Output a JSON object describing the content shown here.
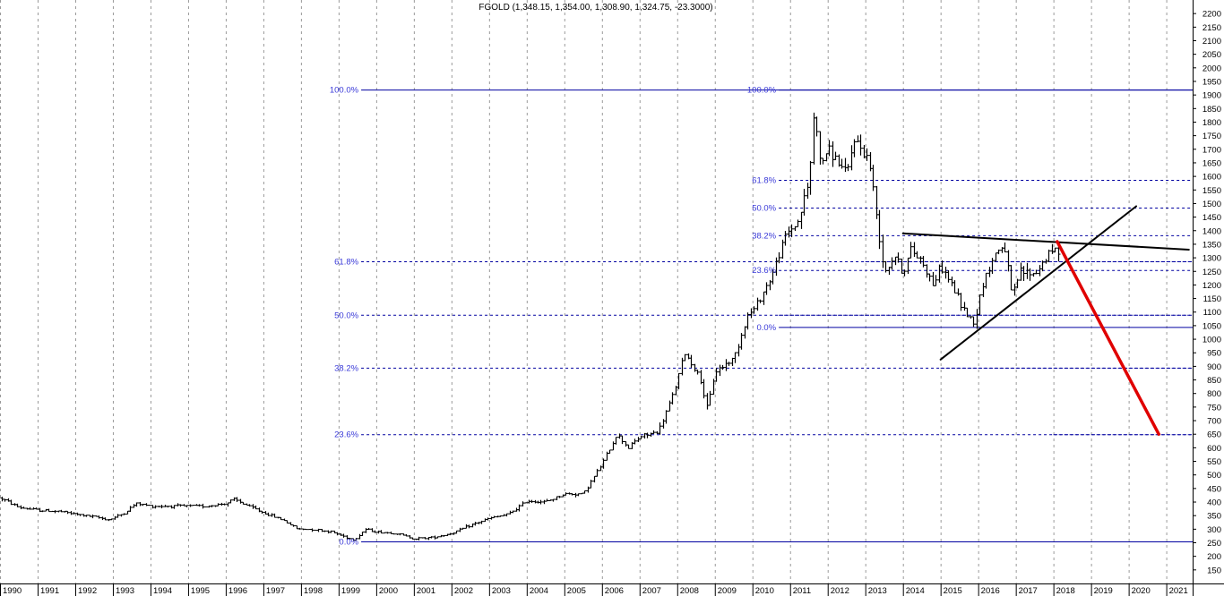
{
  "chart_data": {
    "type": "ohlc",
    "title": "FGOLD (1,348.15, 1,354.00, 1,308.90, 1,324.75, -23.3000)",
    "ohlc_last": {
      "open": 1348.15,
      "high": 1354.0,
      "low": 1308.9,
      "close": 1324.75,
      "change": -23.3
    },
    "ylim": [
      100,
      2250
    ],
    "y_ticks": [
      150,
      200,
      250,
      300,
      350,
      400,
      450,
      500,
      550,
      600,
      650,
      700,
      750,
      800,
      850,
      900,
      950,
      1000,
      1050,
      1100,
      1150,
      1200,
      1250,
      1300,
      1350,
      1400,
      1450,
      1500,
      1550,
      1600,
      1650,
      1700,
      1750,
      1800,
      1850,
      1900,
      1950,
      2000,
      2050,
      2100,
      2150,
      2200
    ],
    "xlim": [
      1990.0,
      2021.7
    ],
    "x_ticks": [
      "1990",
      "1991",
      "1992",
      "1993",
      "1994",
      "1995",
      "1996",
      "1997",
      "1998",
      "1999",
      "2000",
      "2001",
      "2002",
      "2003",
      "2004",
      "2005",
      "2006",
      "2007",
      "2008",
      "2009",
      "2010",
      "2011",
      "2012",
      "2013",
      "2014",
      "2015",
      "2016",
      "2017",
      "2018",
      "2019",
      "2020",
      "2021"
    ],
    "grid": {
      "vertical": true,
      "horizontal": false
    },
    "price_anchors": [
      [
        1990.0,
        415
      ],
      [
        1990.5,
        380
      ],
      [
        1991.0,
        370
      ],
      [
        1991.6,
        365
      ],
      [
        1992.0,
        355
      ],
      [
        1992.5,
        345
      ],
      [
        1992.9,
        335
      ],
      [
        1993.3,
        360
      ],
      [
        1993.6,
        395
      ],
      [
        1994.0,
        385
      ],
      [
        1994.5,
        385
      ],
      [
        1995.0,
        385
      ],
      [
        1995.5,
        385
      ],
      [
        1996.0,
        395
      ],
      [
        1996.2,
        410
      ],
      [
        1996.6,
        385
      ],
      [
        1997.0,
        360
      ],
      [
        1997.5,
        335
      ],
      [
        1997.9,
        300
      ],
      [
        1998.3,
        300
      ],
      [
        1998.8,
        290
      ],
      [
        1999.4,
        260
      ],
      [
        1999.7,
        300
      ],
      [
        2000.0,
        290
      ],
      [
        2000.5,
        285
      ],
      [
        2001.0,
        265
      ],
      [
        2001.5,
        270
      ],
      [
        2002.0,
        285
      ],
      [
        2002.5,
        315
      ],
      [
        2003.0,
        340
      ],
      [
        2003.5,
        355
      ],
      [
        2004.0,
        405
      ],
      [
        2004.5,
        400
      ],
      [
        2005.0,
        430
      ],
      [
        2005.5,
        430
      ],
      [
        2006.0,
        540
      ],
      [
        2006.4,
        650
      ],
      [
        2006.7,
        600
      ],
      [
        2007.0,
        640
      ],
      [
        2007.5,
        660
      ],
      [
        2007.9,
        800
      ],
      [
        2008.2,
        950
      ],
      [
        2008.6,
        860
      ],
      [
        2008.8,
        740
      ],
      [
        2009.0,
        880
      ],
      [
        2009.5,
        930
      ],
      [
        2009.9,
        1100
      ],
      [
        2010.0,
        1100
      ],
      [
        2010.5,
        1230
      ],
      [
        2010.9,
        1390
      ],
      [
        2011.2,
        1430
      ],
      [
        2011.5,
        1580
      ],
      [
        2011.65,
        1860
      ],
      [
        2011.8,
        1640
      ],
      [
        2012.0,
        1700
      ],
      [
        2012.3,
        1650
      ],
      [
        2012.5,
        1600
      ],
      [
        2012.7,
        1740
      ],
      [
        2012.9,
        1700
      ],
      [
        2013.1,
        1660
      ],
      [
        2013.3,
        1450
      ],
      [
        2013.5,
        1250
      ],
      [
        2013.8,
        1310
      ],
      [
        2014.0,
        1240
      ],
      [
        2014.2,
        1330
      ],
      [
        2014.5,
        1290
      ],
      [
        2014.8,
        1200
      ],
      [
        2015.0,
        1270
      ],
      [
        2015.3,
        1200
      ],
      [
        2015.6,
        1110
      ],
      [
        2015.9,
        1060
      ],
      [
        2016.1,
        1200
      ],
      [
        2016.5,
        1330
      ],
      [
        2016.7,
        1340
      ],
      [
        2016.9,
        1150
      ],
      [
        2017.1,
        1250
      ],
      [
        2017.5,
        1240
      ],
      [
        2017.8,
        1300
      ],
      [
        2018.0,
        1330
      ],
      [
        2018.15,
        1325
      ]
    ],
    "fib_left": {
      "x_range": [
        1999.6,
        2021.7
      ],
      "levels": [
        {
          "label": "100.0%",
          "y": 1920,
          "solid": true
        },
        {
          "label": "61.8%",
          "y": 1287,
          "solid": false
        },
        {
          "label": "50.0%",
          "y": 1090,
          "solid": false
        },
        {
          "label": "38.2%",
          "y": 895,
          "solid": false
        },
        {
          "label": "23.6%",
          "y": 650,
          "solid": false
        },
        {
          "label": "0.0%",
          "y": 255,
          "solid": true
        }
      ]
    },
    "fib_right": {
      "x_range": [
        2010.7,
        2021.7
      ],
      "levels": [
        {
          "label": "100.0%",
          "y": 1920,
          "solid": true
        },
        {
          "label": "61.8%",
          "y": 1587,
          "solid": false
        },
        {
          "label": "50.0%",
          "y": 1485,
          "solid": false
        },
        {
          "label": "38.2%",
          "y": 1383,
          "solid": false
        },
        {
          "label": "23.6%",
          "y": 1255,
          "solid": false
        },
        {
          "label": "0.0%",
          "y": 1045,
          "solid": true
        }
      ]
    },
    "extra_dashed_levels": [
      {
        "y": 1287,
        "x_range": [
          2013.0,
          2021.7
        ]
      },
      {
        "y": 1090,
        "x_range": [
          2010.7,
          2021.7
        ]
      },
      {
        "y": 895,
        "x_range": [
          2015.0,
          2021.7
        ]
      },
      {
        "y": 650,
        "x_range": [
          2018.0,
          2021.7
        ]
      }
    ],
    "trendlines": [
      {
        "name": "resistance",
        "color": "#000000",
        "from": [
          2014.0,
          1390
        ],
        "to": [
          2021.6,
          1330
        ]
      },
      {
        "name": "support",
        "color": "#000000",
        "from": [
          2015.0,
          925
        ],
        "to": [
          2020.2,
          1490
        ]
      },
      {
        "name": "projection",
        "color": "#e00000",
        "from": [
          2018.1,
          1360
        ],
        "to": [
          2020.8,
          650
        ]
      }
    ],
    "colors": {
      "bars": "#000000",
      "fib": "#0000a0",
      "fib_label": "#3a3ad8",
      "grid": "#9a9a9a",
      "projection": "#e00000"
    }
  }
}
